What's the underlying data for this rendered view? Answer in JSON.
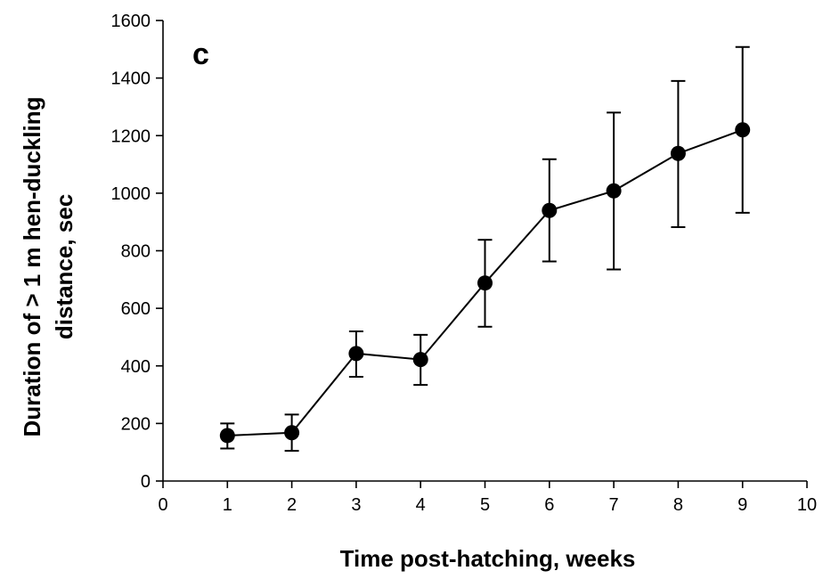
{
  "chart_data": {
    "type": "line",
    "panel_label": "c",
    "xlabel": "Time post-hatching, weeks",
    "ylabel_lines": [
      "Duration of > 1 m hen-duckling",
      "distance, sec"
    ],
    "xlim": [
      0,
      10
    ],
    "ylim": [
      0,
      1600
    ],
    "x_ticks": [
      0,
      1,
      2,
      3,
      4,
      5,
      6,
      7,
      8,
      9,
      10
    ],
    "y_ticks": [
      0,
      200,
      400,
      600,
      800,
      1000,
      1200,
      1400,
      1600
    ],
    "grid": false,
    "series": [
      {
        "color": "#000000",
        "x": [
          1,
          2,
          3,
          4,
          5,
          6,
          7,
          8,
          9
        ],
        "y": [
          158,
          168,
          443,
          422,
          688,
          940,
          1008,
          1138,
          1220
        ],
        "error_low": [
          113,
          105,
          362,
          334,
          536,
          763,
          735,
          882,
          932
        ],
        "error_high": [
          200,
          231,
          520,
          508,
          838,
          1118,
          1280,
          1390,
          1508
        ]
      }
    ]
  }
}
